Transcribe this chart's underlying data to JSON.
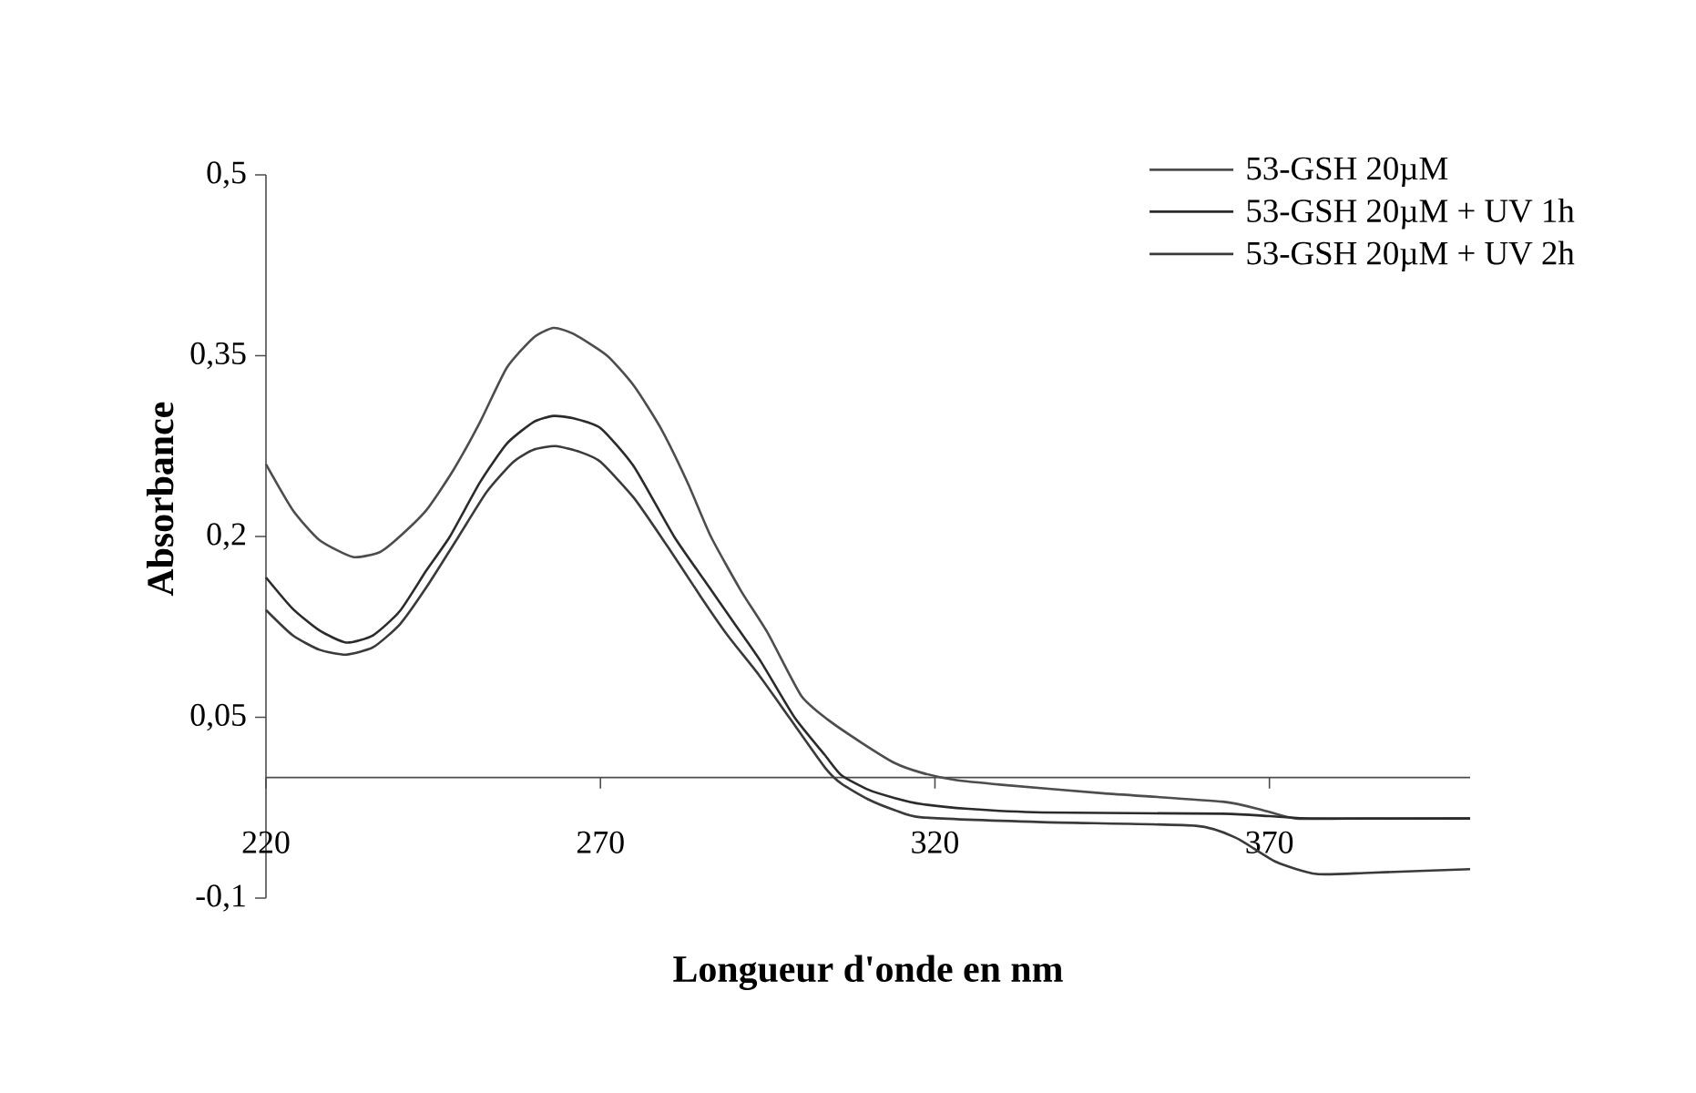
{
  "chart_data": {
    "type": "line",
    "xlabel": "Longueur d'onde en nm",
    "ylabel": "Absorbance",
    "xlim": [
      220,
      400
    ],
    "ylim": [
      -0.1,
      0.5
    ],
    "xticks": [
      220,
      270,
      320,
      370
    ],
    "yticks": [
      {
        "value": -0.1,
        "label": "-0,1"
      },
      {
        "value": 0.05,
        "label": "0,05"
      },
      {
        "value": 0.2,
        "label": "0,2"
      },
      {
        "value": 0.35,
        "label": "0,35"
      },
      {
        "value": 0.5,
        "label": "0,5"
      }
    ],
    "legend": "top right",
    "series": [
      {
        "name": "53-GSH 20µM",
        "color": "#4d4d4d",
        "x": [
          220,
          224,
          228,
          233,
          237,
          240,
          244,
          248,
          252,
          256,
          260,
          263,
          266,
          271,
          275,
          279,
          283,
          286.5,
          291,
          295,
          300,
          304,
          309,
          314,
          318,
          323,
          330,
          345,
          363,
          369,
          374,
          385,
          400
        ],
        "values": [
          0.26,
          0.222,
          0.197,
          0.183,
          0.187,
          0.2,
          0.222,
          0.255,
          0.295,
          0.34,
          0.365,
          0.373,
          0.368,
          0.35,
          0.325,
          0.29,
          0.245,
          0.2,
          0.155,
          0.12,
          0.068,
          0.048,
          0.029,
          0.012,
          0.004,
          -0.002,
          -0.006,
          -0.013,
          -0.02,
          -0.027,
          -0.034,
          -0.034,
          -0.034
        ]
      },
      {
        "name": "53-GSH 20µM + UV 1h",
        "color": "#2b2b2b",
        "x": [
          220,
          224,
          228,
          232,
          236,
          240,
          244,
          247.5,
          252,
          256,
          260,
          263,
          266,
          270,
          275,
          281,
          286,
          290,
          294,
          299,
          303.5,
          306,
          310,
          314,
          318,
          325,
          336,
          363,
          370,
          377,
          400
        ],
        "values": [
          0.166,
          0.14,
          0.122,
          0.112,
          0.118,
          0.138,
          0.172,
          0.2,
          0.245,
          0.277,
          0.295,
          0.3,
          0.298,
          0.29,
          0.258,
          0.2,
          0.16,
          0.128,
          0.096,
          0.05,
          0.019,
          0.002,
          -0.01,
          -0.017,
          -0.022,
          -0.026,
          -0.029,
          -0.03,
          -0.032,
          -0.034,
          -0.034
        ]
      },
      {
        "name": "53-GSH 20µM + UV 2h",
        "color": "#3a3a3a",
        "x": [
          220,
          224,
          228,
          232,
          236,
          240,
          244,
          248.8,
          253,
          257,
          260,
          263.3,
          267,
          270,
          275,
          280,
          285,
          289,
          293.7,
          298.2,
          303.6,
          306,
          310,
          314,
          318,
          336,
          359,
          365,
          371,
          377,
          385,
          400
        ],
        "values": [
          0.139,
          0.118,
          0.106,
          0.102,
          0.108,
          0.127,
          0.158,
          0.2,
          0.237,
          0.262,
          0.272,
          0.275,
          0.27,
          0.262,
          0.232,
          0.192,
          0.15,
          0.118,
          0.085,
          0.05,
          0.008,
          -0.005,
          -0.018,
          -0.027,
          -0.033,
          -0.037,
          -0.04,
          -0.05,
          -0.07,
          -0.08,
          -0.079,
          -0.076
        ]
      }
    ]
  }
}
